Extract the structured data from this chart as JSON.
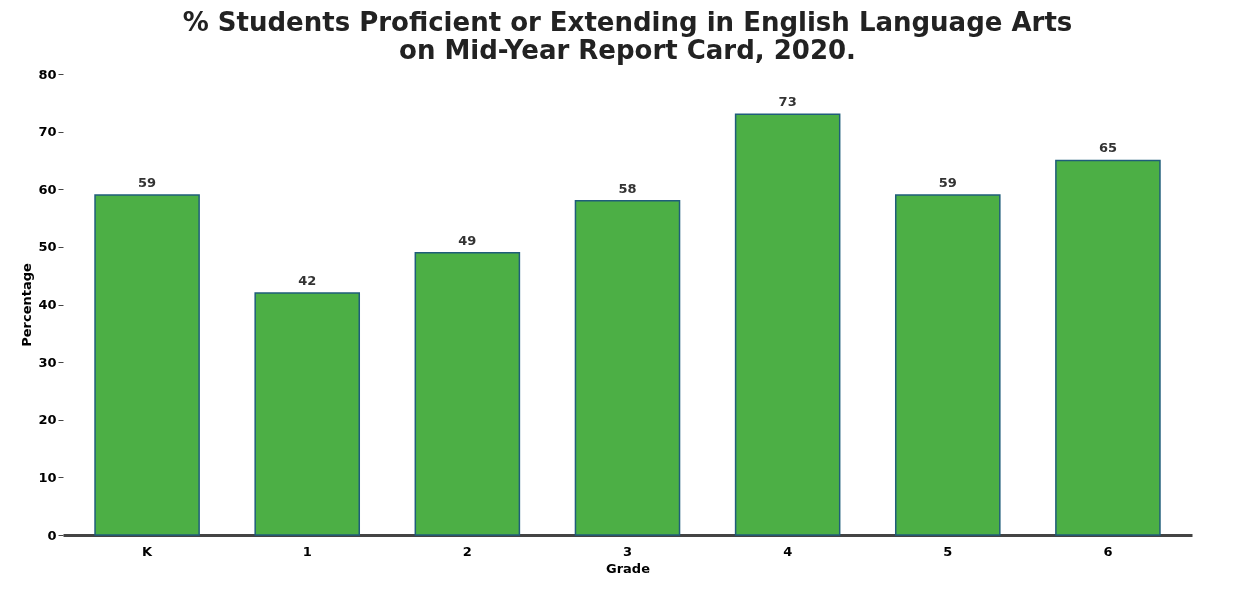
{
  "chart_data": {
    "type": "bar",
    "title": "% Students Proficient or Extending in English Language Arts on Mid-Year Report Card, 2020.",
    "xlabel": "Grade",
    "ylabel": "Percentage",
    "categories": [
      "K",
      "1",
      "2",
      "3",
      "4",
      "5",
      "6"
    ],
    "values": [
      59,
      42,
      49,
      58,
      73,
      59,
      65
    ],
    "color": "#4caf45",
    "ylim": [
      0,
      80
    ],
    "yticks": [
      0,
      10,
      20,
      30,
      40,
      50,
      60,
      70,
      80
    ],
    "grid": false,
    "data_labels": true
  }
}
